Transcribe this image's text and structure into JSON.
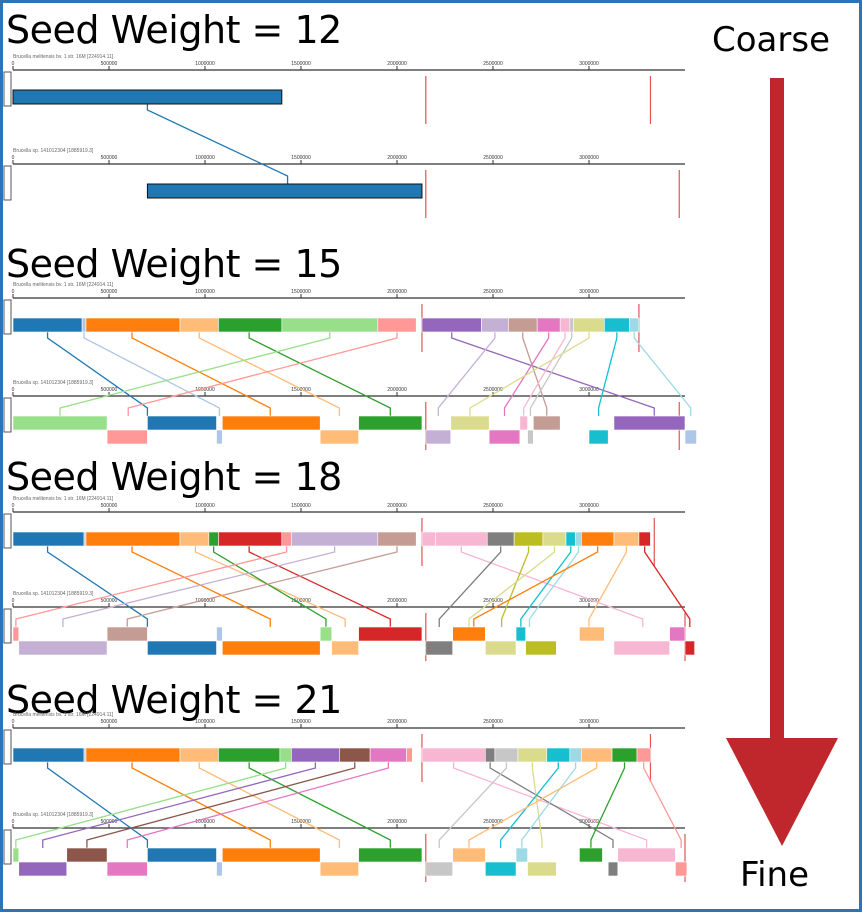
{
  "labels": {
    "coarse": "Coarse",
    "fine": "Fine"
  },
  "colors": {
    "frame": "#2e74b5",
    "arrow": "#c0272d",
    "palette": [
      "#1f77b4",
      "#aec7e8",
      "#ff7f0e",
      "#ffbb78",
      "#2ca02c",
      "#98df8a",
      "#d62728",
      "#ff9896",
      "#9467bd",
      "#c5b0d5",
      "#8c564b",
      "#c49c94",
      "#e377c2",
      "#f7b6d2",
      "#7f7f7f",
      "#c7c7c7",
      "#bcbd22",
      "#dbdb8d",
      "#17becf",
      "#9edae5"
    ]
  },
  "axis": {
    "max": 3500000,
    "ticks": [
      "0",
      "500000",
      "1000000",
      "1500000",
      "2000000",
      "2500000",
      "3000000"
    ]
  },
  "panels": [
    {
      "title": "Seed Weight = 12",
      "genome_top": "Brucella melitensis bv. 1 str. 16M [224914.11]",
      "genome_bottom": "Brucella sp. 141012304 [1885919.3]",
      "chrom_breaks_top": [
        2150000,
        3320000
      ],
      "chrom_breaks_bottom": [
        2150000,
        3470000
      ],
      "blocks_top": [
        [
          0,
          1400000,
          0
        ]
      ],
      "blocks_bottom": [
        [
          700000,
          2130000,
          0
        ]
      ],
      "links": [
        [
          700000,
          1430000,
          0
        ]
      ]
    },
    {
      "title": "Seed Weight = 15",
      "genome_top": "Brucella melitensis bv. 1 str. 16M [224914.11]",
      "genome_bottom": "Brucella sp. 141012304 [1885919.3]",
      "chrom_breaks_top": [
        2130000,
        3260000
      ],
      "chrom_breaks_bottom": [
        2150000,
        3470000
      ],
      "blocks_top": [
        [
          0,
          360000,
          0
        ],
        [
          360000,
          380000,
          1
        ],
        [
          380000,
          870000,
          2
        ],
        [
          870000,
          1070000,
          3
        ],
        [
          1070000,
          1400000,
          4
        ],
        [
          1400000,
          1900000,
          5
        ],
        [
          1900000,
          2100000,
          7
        ],
        [
          2130000,
          2440000,
          8
        ],
        [
          2440000,
          2580000,
          9
        ],
        [
          2580000,
          2730000,
          11
        ],
        [
          2730000,
          2850000,
          12
        ],
        [
          2850000,
          2900000,
          13
        ],
        [
          2900000,
          2920000,
          15
        ],
        [
          2920000,
          3080000,
          17
        ],
        [
          3080000,
          3210000,
          18
        ],
        [
          3210000,
          3260000,
          19
        ]
      ],
      "blocks_bottom": [
        [
          0,
          490000,
          5
        ],
        [
          490000,
          700000,
          7
        ],
        [
          700000,
          1060000,
          0
        ],
        [
          1060000,
          1090000,
          1
        ],
        [
          1090000,
          1600000,
          2
        ],
        [
          1600000,
          1800000,
          3
        ],
        [
          1800000,
          2130000,
          4
        ],
        [
          2150000,
          2280000,
          9
        ],
        [
          2280000,
          2480000,
          17
        ],
        [
          2480000,
          2640000,
          12
        ],
        [
          2640000,
          2680000,
          13
        ],
        [
          2680000,
          2710000,
          15
        ],
        [
          2710000,
          2850000,
          11
        ],
        [
          3000000,
          3100000,
          18
        ],
        [
          3130000,
          3500000,
          8
        ],
        [
          3500000,
          3560000,
          1
        ]
      ],
      "links": [
        [
          180000,
          700000,
          0
        ],
        [
          370000,
          1075000,
          1
        ],
        [
          620000,
          1340000,
          2
        ],
        [
          970000,
          1700000,
          3
        ],
        [
          1230000,
          1965000,
          4
        ],
        [
          1650000,
          245000,
          5
        ],
        [
          2000000,
          600000,
          7
        ],
        [
          2285000,
          3340000,
          8
        ],
        [
          2510000,
          2215000,
          9
        ],
        [
          2655000,
          2780000,
          11
        ],
        [
          2790000,
          2560000,
          12
        ],
        [
          2875000,
          2660000,
          13
        ],
        [
          2910000,
          2695000,
          15
        ],
        [
          3000000,
          2380000,
          17
        ],
        [
          3145000,
          3050000,
          18
        ],
        [
          3235000,
          3530000,
          19
        ]
      ]
    },
    {
      "title": "Seed Weight = 18",
      "genome_top": "Brucella melitensis bv. 1 str. 16M [224914.11]",
      "genome_bottom": "Brucella sp. 141012304 [1885919.3]",
      "chrom_breaks_top": [
        2130000,
        3340000
      ],
      "chrom_breaks_bottom": [
        2150000,
        3500000
      ],
      "blocks_top": [
        [
          0,
          370000,
          0
        ],
        [
          370000,
          380000,
          1
        ],
        [
          380000,
          870000,
          2
        ],
        [
          870000,
          1020000,
          3
        ],
        [
          1020000,
          1070000,
          4
        ],
        [
          1070000,
          1400000,
          6
        ],
        [
          1400000,
          1450000,
          7
        ],
        [
          1450000,
          1900000,
          9
        ],
        [
          1900000,
          2100000,
          11
        ],
        [
          2130000,
          2200000,
          13
        ],
        [
          2200000,
          2470000,
          13
        ],
        [
          2470000,
          2610000,
          14
        ],
        [
          2610000,
          2760000,
          16
        ],
        [
          2760000,
          2880000,
          17
        ],
        [
          2880000,
          2930000,
          18
        ],
        [
          2930000,
          2960000,
          19
        ],
        [
          2960000,
          3130000,
          2
        ],
        [
          3130000,
          3260000,
          3
        ],
        [
          3260000,
          3320000,
          6
        ]
      ],
      "blocks_bottom": [
        [
          0,
          30000,
          7
        ],
        [
          30000,
          490000,
          9
        ],
        [
          490000,
          700000,
          11
        ],
        [
          700000,
          1060000,
          0
        ],
        [
          1060000,
          1090000,
          1
        ],
        [
          1090000,
          1600000,
          2
        ],
        [
          1600000,
          1660000,
          5
        ],
        [
          1660000,
          1800000,
          3
        ],
        [
          1800000,
          2130000,
          6
        ],
        [
          2150000,
          2290000,
          14
        ],
        [
          2290000,
          2460000,
          2
        ],
        [
          2460000,
          2620000,
          17
        ],
        [
          2620000,
          2670000,
          18
        ],
        [
          2670000,
          2830000,
          16
        ],
        [
          2950000,
          3080000,
          3
        ],
        [
          3130000,
          3420000,
          13
        ],
        [
          3420000,
          3500000,
          12
        ],
        [
          3500000,
          3550000,
          6
        ]
      ],
      "links": [
        [
          180000,
          700000,
          0
        ],
        [
          620000,
          1340000,
          2
        ],
        [
          950000,
          1730000,
          3
        ],
        [
          1045000,
          1630000,
          4
        ],
        [
          1230000,
          1965000,
          6
        ],
        [
          1425000,
          15000,
          7
        ],
        [
          1675000,
          260000,
          9
        ],
        [
          2000000,
          595000,
          11
        ],
        [
          2335000,
          3280000,
          13
        ],
        [
          2540000,
          2220000,
          14
        ],
        [
          2685000,
          2545000,
          16
        ],
        [
          2820000,
          2375000,
          17
        ],
        [
          2905000,
          2645000,
          18
        ],
        [
          2945000,
          2690000,
          19
        ],
        [
          3045000,
          2400000,
          2
        ],
        [
          3195000,
          3000000,
          3
        ],
        [
          3290000,
          3525000,
          6
        ]
      ]
    },
    {
      "title": "Seed Weight = 21",
      "genome_top": "Brucella melitensis bv. 1 str. 16M [224914.11]",
      "genome_bottom": "Brucella sp. 141012304 [1885919.3]",
      "chrom_breaks_top": [
        2130000,
        3320000
      ],
      "chrom_breaks_bottom": [
        2150000,
        3500000
      ],
      "blocks_top": [
        [
          0,
          370000,
          0
        ],
        [
          370000,
          380000,
          1
        ],
        [
          380000,
          870000,
          2
        ],
        [
          870000,
          1070000,
          3
        ],
        [
          1070000,
          1390000,
          4
        ],
        [
          1390000,
          1450000,
          5
        ],
        [
          1450000,
          1700000,
          8
        ],
        [
          1700000,
          1860000,
          10
        ],
        [
          1860000,
          2050000,
          12
        ],
        [
          2050000,
          2080000,
          7
        ],
        [
          2130000,
          2460000,
          13
        ],
        [
          2460000,
          2510000,
          14
        ],
        [
          2510000,
          2630000,
          15
        ],
        [
          2630000,
          2780000,
          17
        ],
        [
          2780000,
          2900000,
          18
        ],
        [
          2900000,
          2960000,
          19
        ],
        [
          2960000,
          3120000,
          3
        ],
        [
          3120000,
          3250000,
          4
        ],
        [
          3250000,
          3320000,
          7
        ]
      ],
      "blocks_bottom": [
        [
          0,
          30000,
          5
        ],
        [
          30000,
          280000,
          8
        ],
        [
          280000,
          490000,
          10
        ],
        [
          490000,
          700000,
          12
        ],
        [
          700000,
          1060000,
          0
        ],
        [
          1060000,
          1090000,
          1
        ],
        [
          1090000,
          1600000,
          2
        ],
        [
          1600000,
          1800000,
          3
        ],
        [
          1800000,
          2130000,
          4
        ],
        [
          2150000,
          2290000,
          15
        ],
        [
          2290000,
          2460000,
          3
        ],
        [
          2460000,
          2620000,
          18
        ],
        [
          2620000,
          2680000,
          19
        ],
        [
          2680000,
          2830000,
          17
        ],
        [
          2950000,
          3070000,
          4
        ],
        [
          3100000,
          3150000,
          14
        ],
        [
          3150000,
          3450000,
          13
        ],
        [
          3450000,
          3510000,
          7
        ]
      ],
      "links": [
        [
          180000,
          700000,
          0
        ],
        [
          620000,
          1340000,
          2
        ],
        [
          970000,
          1700000,
          3
        ],
        [
          1230000,
          1965000,
          4
        ],
        [
          1420000,
          15000,
          5
        ],
        [
          1575000,
          155000,
          8
        ],
        [
          1780000,
          385000,
          10
        ],
        [
          1955000,
          595000,
          12
        ],
        [
          2295000,
          3300000,
          13
        ],
        [
          2485000,
          3125000,
          14
        ],
        [
          2570000,
          2220000,
          15
        ],
        [
          2705000,
          2755000,
          17
        ],
        [
          2840000,
          2540000,
          18
        ],
        [
          2930000,
          2650000,
          19
        ],
        [
          3040000,
          2375000,
          3
        ],
        [
          3185000,
          3010000,
          4
        ],
        [
          3285000,
          3480000,
          7
        ]
      ]
    }
  ]
}
